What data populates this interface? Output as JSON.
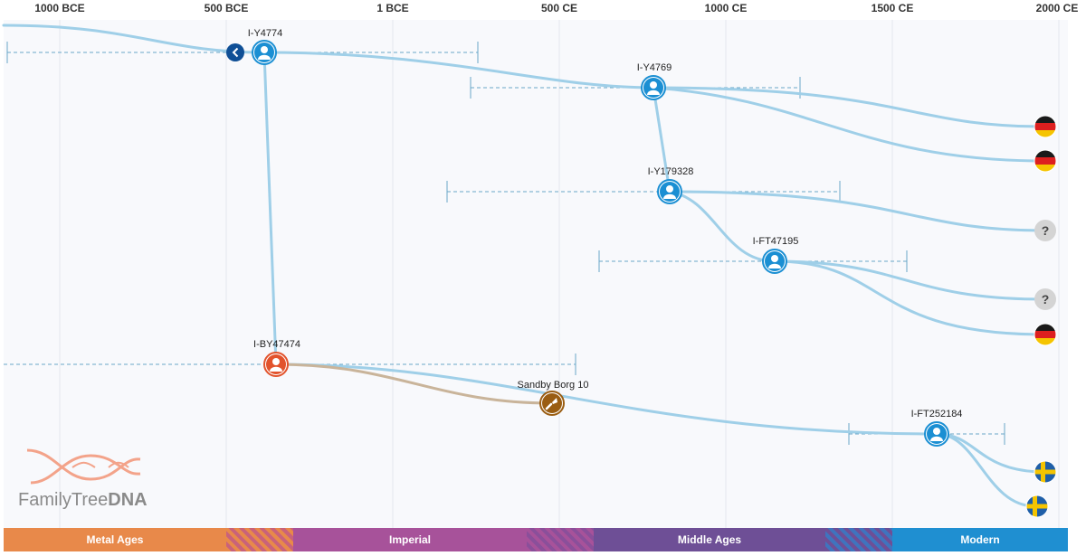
{
  "axis": {
    "ticks": [
      "1000 BCE",
      "500 BCE",
      "1 BCE",
      "500 CE",
      "1000 CE",
      "1500 CE",
      "2000 CE"
    ]
  },
  "nodes": {
    "n1": {
      "label": "I-Y4774"
    },
    "n2": {
      "label": "I-Y4769"
    },
    "n3": {
      "label": "I-Y179328"
    },
    "n4": {
      "label": "I-FT47195"
    },
    "n5": {
      "label": "I-BY47474"
    },
    "n6": {
      "label": "Sandby Borg 10"
    },
    "n7": {
      "label": "I-FT252184"
    }
  },
  "endpoints": {
    "e1": {
      "country": "germany-flag"
    },
    "e2": {
      "country": "germany-flag"
    },
    "e3": {
      "country": "unknown",
      "glyph": "?"
    },
    "e4": {
      "country": "unknown",
      "glyph": "?"
    },
    "e5": {
      "country": "germany-flag"
    },
    "e6": {
      "country": "sweden-flag"
    },
    "e7": {
      "country": "sweden-flag"
    }
  },
  "logo": {
    "text_a": "FamilyTree",
    "text_b": "DNA"
  },
  "eras": {
    "metal": "Metal Ages",
    "imperial": "Imperial",
    "middle": "Middle Ages",
    "modern": "Modern"
  },
  "colors": {
    "line": "#9fcfe8",
    "ancient_line": "#c9b49a",
    "node": "#1b8fd3",
    "ancient_node": "#9a5d12",
    "ancient_person": "#e2532c",
    "range": "#6aa8c9",
    "grid": "#e3e8ee",
    "plot_bg": "#f8f9fc"
  }
}
